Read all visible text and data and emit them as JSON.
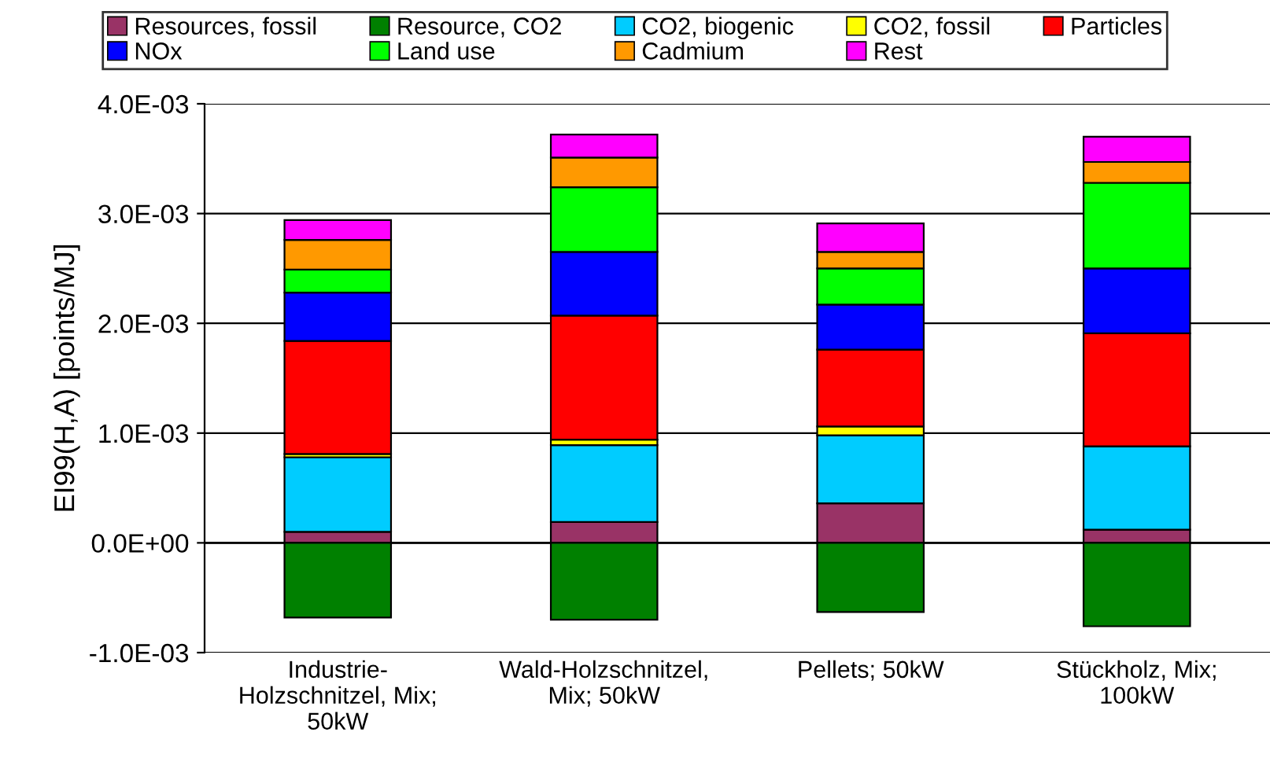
{
  "chart_data": {
    "type": "bar",
    "stacked": true,
    "ylabel": "EI99(H,A) [points/MJ]",
    "categories": [
      "Industrie-\nHolzschnitzel, Mix;\n50kW",
      "Wald-Holzschnitzel,\nMix; 50kW",
      "Pellets; 50kW",
      "Stückholz, Mix;\n100kW"
    ],
    "series": [
      {
        "name": "Resources, fossil",
        "color": "#993366",
        "values": [
          0.0001,
          0.00019,
          0.00036,
          0.00012
        ]
      },
      {
        "name": "Resource, CO2",
        "color": "#008000",
        "values": [
          -0.00068,
          -0.0007,
          -0.00063,
          -0.00076
        ]
      },
      {
        "name": "CO2, biogenic",
        "color": "#00ccff",
        "values": [
          0.00068,
          0.0007,
          0.00062,
          0.00076
        ]
      },
      {
        "name": "CO2, fossil",
        "color": "#ffff00",
        "values": [
          3e-05,
          5e-05,
          8e-05,
          null
        ]
      },
      {
        "name": "Particles",
        "color": "#ff0000",
        "values": [
          0.00103,
          0.00113,
          0.0007,
          0.00103
        ]
      },
      {
        "name": "NOx",
        "color": "#0000ff",
        "values": [
          0.00044,
          0.00058,
          0.00041,
          0.00059
        ]
      },
      {
        "name": "Land use",
        "color": "#00ff00",
        "values": [
          0.00021,
          0.00059,
          0.00033,
          0.00078
        ]
      },
      {
        "name": "Cadmium",
        "color": "#ff9900",
        "values": [
          0.00027,
          0.00027,
          0.00015,
          0.00019
        ]
      },
      {
        "name": "Rest",
        "color": "#ff00ff",
        "values": [
          0.00018,
          0.00021,
          0.00026,
          0.00023
        ]
      }
    ],
    "ylim": [
      -0.001,
      0.004
    ],
    "yticks": [
      {
        "value": -0.001,
        "label": "-1.0E-03"
      },
      {
        "value": 0,
        "label": "0.0E+00"
      },
      {
        "value": 0.001,
        "label": "1.0E-03"
      },
      {
        "value": 0.002,
        "label": "2.0E-03"
      },
      {
        "value": 0.003,
        "label": "3.0E-03"
      },
      {
        "value": 0.004,
        "label": "4.0E-03"
      }
    ],
    "grid": "y",
    "legend": "top"
  }
}
